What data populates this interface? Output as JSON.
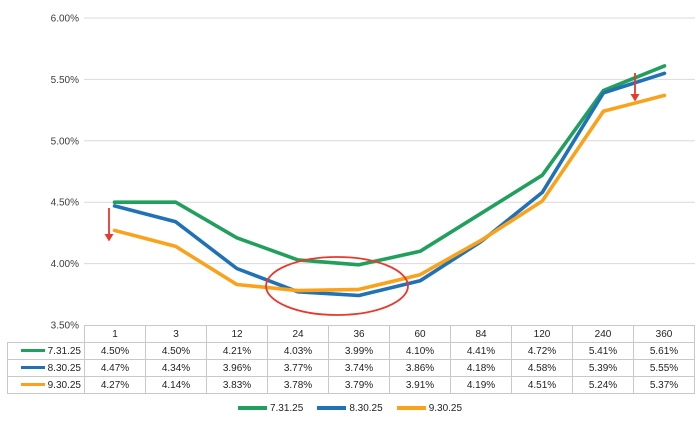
{
  "colors": {
    "series_green": "#21a05d",
    "series_blue": "#2071b5",
    "series_orange": "#faa21c",
    "annotation_red": "#e8392d",
    "gridline": "#d9d9d9",
    "table_border": "#c9c9c9",
    "axis_text": "#3c3c3c",
    "table_text": "#1f1f1f"
  },
  "chart_data": {
    "type": "line",
    "categories": [
      "1",
      "3",
      "12",
      "24",
      "36",
      "60",
      "84",
      "120",
      "240",
      "360"
    ],
    "series": [
      {
        "name": "7.31.25",
        "color_key": "series_green",
        "values": [
          4.5,
          4.5,
          4.21,
          4.03,
          3.99,
          4.1,
          4.41,
          4.72,
          5.41,
          5.61
        ]
      },
      {
        "name": "8.30.25",
        "color_key": "series_blue",
        "values": [
          4.47,
          4.34,
          3.96,
          3.77,
          3.74,
          3.86,
          4.18,
          4.58,
          5.39,
          5.55
        ]
      },
      {
        "name": "9.30.25",
        "color_key": "series_orange",
        "values": [
          4.27,
          4.14,
          3.83,
          3.78,
          3.79,
          3.91,
          4.19,
          4.51,
          5.24,
          5.37
        ]
      }
    ],
    "ylim": [
      3.5,
      6.0
    ],
    "ytick_step": 0.5,
    "y_tick_labels": [
      "6.00%",
      "5.50%",
      "5.00%",
      "4.50%",
      "4.00%",
      "3.50%"
    ],
    "grid": "horizontal",
    "legend_position": "bottom",
    "annotations": [
      {
        "type": "down-arrow",
        "note": "left arrow pointing down to 9.30.25 curve start at maturity 1"
      },
      {
        "type": "down-arrow",
        "note": "right arrow pointing down from 8.30.25 to 9.30.25 near maturity 360"
      },
      {
        "type": "ellipse",
        "note": "red oval circling the curve trough around maturities 24-36"
      }
    ]
  },
  "table": {
    "corner_label": "",
    "columns": [
      "1",
      "3",
      "12",
      "24",
      "36",
      "60",
      "84",
      "120",
      "240",
      "360"
    ],
    "rows": [
      {
        "label": "7.31.25",
        "color_key": "series_green",
        "values": [
          "4.50%",
          "4.50%",
          "4.21%",
          "4.03%",
          "3.99%",
          "4.10%",
          "4.41%",
          "4.72%",
          "5.41%",
          "5.61%"
        ]
      },
      {
        "label": "8.30.25",
        "color_key": "series_blue",
        "values": [
          "4.47%",
          "4.34%",
          "3.96%",
          "3.77%",
          "3.74%",
          "3.86%",
          "4.18%",
          "4.58%",
          "5.39%",
          "5.55%"
        ]
      },
      {
        "label": "9.30.25",
        "color_key": "series_orange",
        "values": [
          "4.27%",
          "4.14%",
          "3.83%",
          "3.78%",
          "3.79%",
          "3.91%",
          "4.19%",
          "4.51%",
          "5.24%",
          "5.37%"
        ]
      }
    ]
  },
  "legend": {
    "items": [
      {
        "label": "7.31.25",
        "color_key": "series_green"
      },
      {
        "label": "8.30.25",
        "color_key": "series_blue"
      },
      {
        "label": "9.30.25",
        "color_key": "series_orange"
      }
    ]
  }
}
